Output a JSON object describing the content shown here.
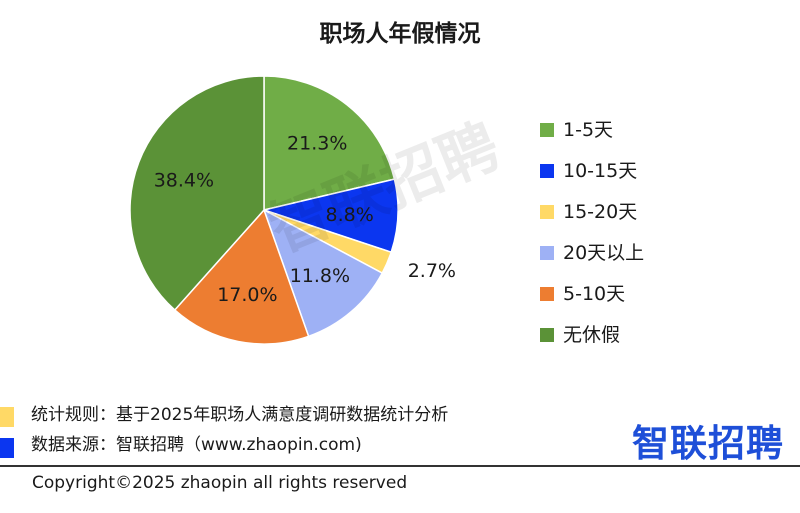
{
  "chart_data": {
    "type": "pie",
    "title": "职场人年假情况",
    "slices": [
      {
        "label": "1-5天",
        "value": 21.3,
        "value_label": "21.3%",
        "color": "#70ad47"
      },
      {
        "label": "10-15天",
        "value": 8.8,
        "value_label": "8.8%",
        "color": "#0b36f0"
      },
      {
        "label": "15-20天",
        "value": 2.7,
        "value_label": "2.7%",
        "color": "#ffd966"
      },
      {
        "label": "20天以上",
        "value": 11.8,
        "value_label": "11.8%",
        "color": "#9eb1f5"
      },
      {
        "label": "5-10天",
        "value": 17.0,
        "value_label": "17.0%",
        "color": "#ed7d31"
      },
      {
        "label": "无休假",
        "value": 38.4,
        "value_label": "38.4%",
        "color": "#5b9237"
      }
    ],
    "start_angle": "12 o'clock",
    "direction": "clockwise",
    "legend_position": "right"
  },
  "watermark": "智联招聘",
  "notes": {
    "rule": {
      "text": "统计规则：基于2025年职场人满意度调研数据统计分析",
      "color": "#ffd966"
    },
    "source": {
      "text": "数据来源：智联招聘（www.zhaopin.com)",
      "color": "#0b36f0"
    }
  },
  "brand": {
    "logo_text": "智联招聘",
    "color": "#1e4fd8"
  },
  "footer": {
    "copyright": "Copyright©2025 zhaopin all rights reserved"
  }
}
